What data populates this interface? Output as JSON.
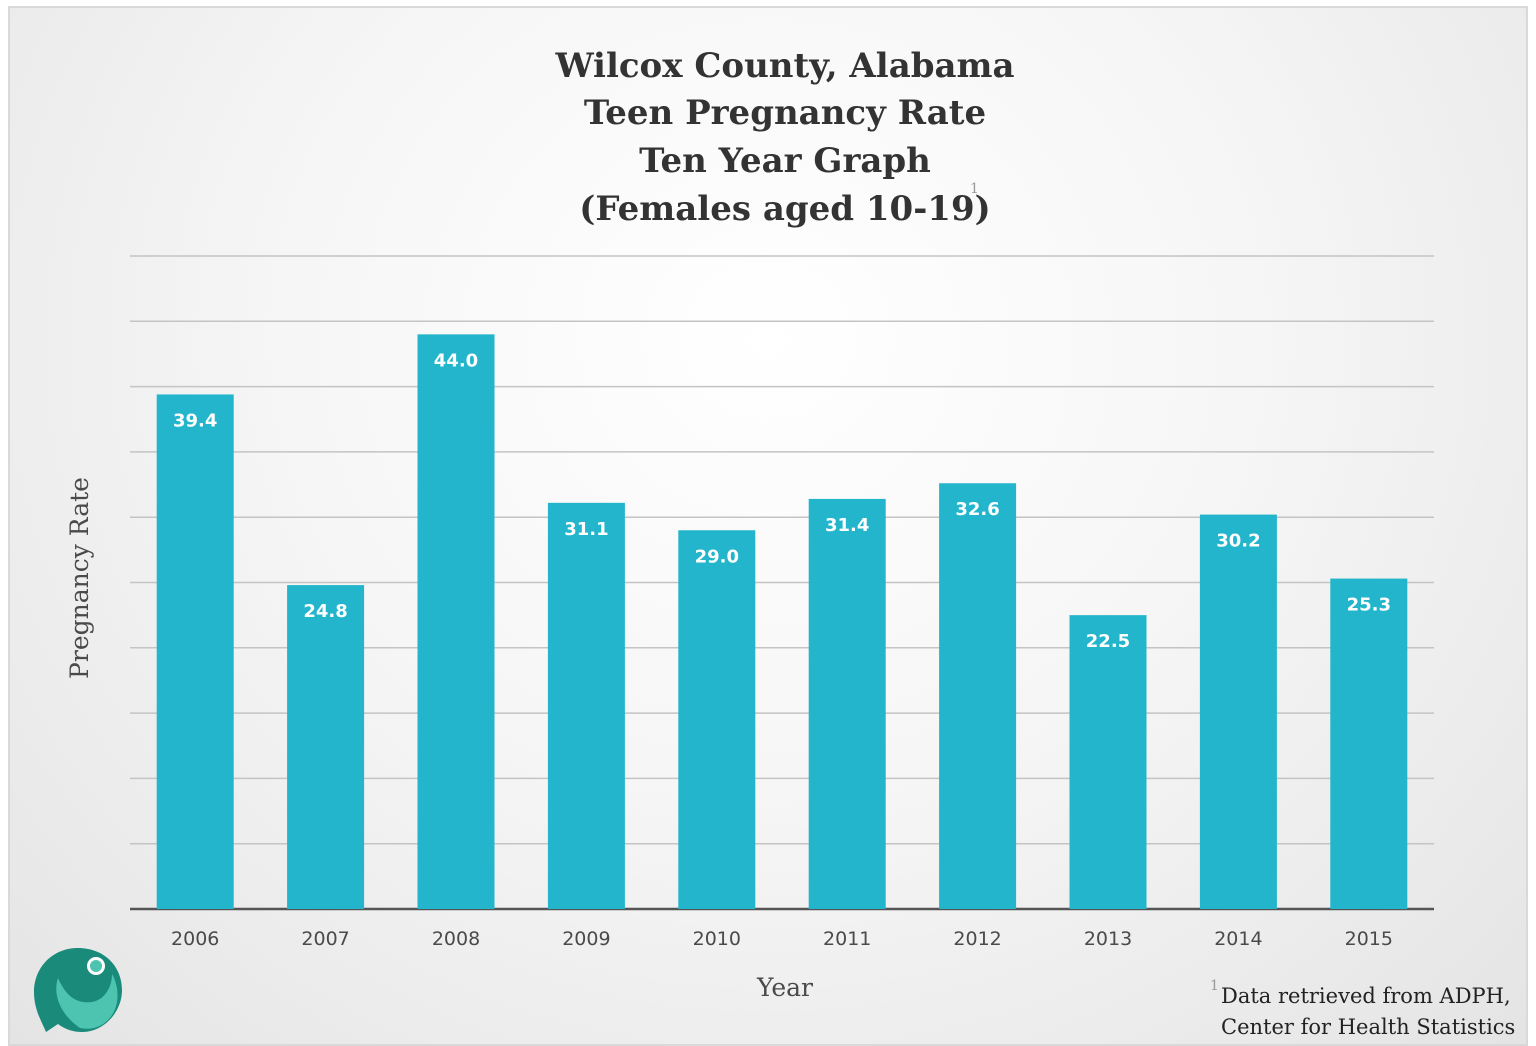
{
  "chart_data": {
    "type": "bar",
    "title_lines": [
      "Wilcox County, Alabama",
      "Teen Pregnancy Rate",
      "Ten Year Graph",
      "(Females aged 10-19)"
    ],
    "title_footnote_marker": "1",
    "categories": [
      "2006",
      "2007",
      "2008",
      "2009",
      "2010",
      "2011",
      "2012",
      "2013",
      "2014",
      "2015"
    ],
    "values": [
      39.4,
      24.8,
      44.0,
      31.1,
      29.0,
      31.4,
      32.6,
      22.5,
      30.2,
      25.3
    ],
    "value_labels": [
      "39.4",
      "24.8",
      "44.0",
      "31.1",
      "29.0",
      "31.4",
      "32.6",
      "22.5",
      "30.2",
      "25.3"
    ],
    "xlabel": "Year",
    "ylabel": "Pregnancy Rate",
    "ylim": [
      0,
      50
    ],
    "grid": true,
    "bar_color": "#22b5cb"
  },
  "source_note": {
    "marker": "1",
    "lines": [
      "Data retrieved from ADPH,",
      "Center for Health Statistics"
    ]
  },
  "logo": {
    "icon": "person-speech-bubble-logo",
    "colors": [
      "#1a8a7a",
      "#4cc4b0"
    ]
  }
}
